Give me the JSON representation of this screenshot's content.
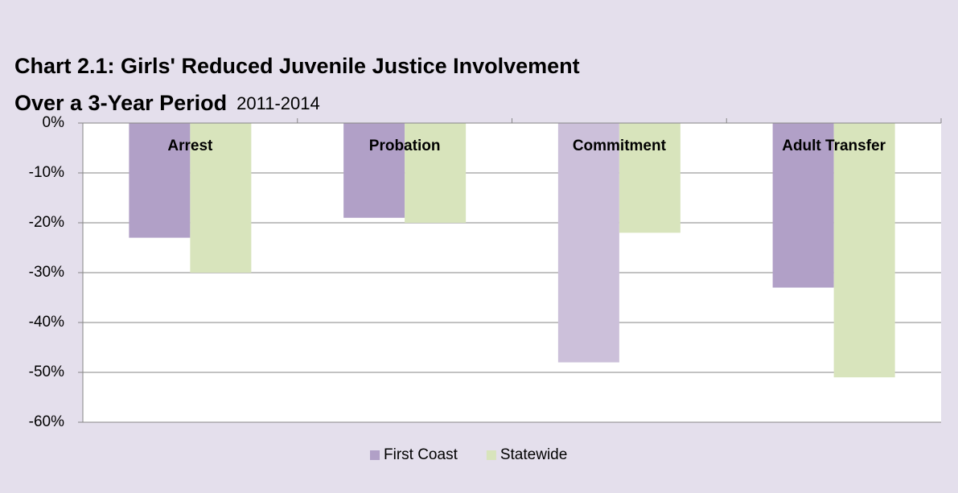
{
  "chart_data": {
    "type": "bar",
    "title_lines": [
      "Chart 2.1: Girls' Reduced Juvenile Justice Involvement",
      "Over a 3-Year Period"
    ],
    "subtitle": "2011-2014",
    "categories": [
      "Arrest",
      "Probation",
      "Commitment",
      "Adult Transfer"
    ],
    "series": [
      {
        "name": "First Coast",
        "color": "#b1a0c7",
        "colors": [
          "#b1a0c7",
          "#b1a0c7",
          "#ccc0da",
          "#b1a0c7"
        ],
        "values": [
          -23,
          -19,
          -48,
          -33
        ]
      },
      {
        "name": "Statewide",
        "color": "#d8e4bc",
        "values": [
          -30,
          -20,
          -22,
          -51
        ]
      }
    ],
    "ylim": [
      -60,
      0
    ],
    "yticks": [
      {
        "value": 0,
        "label": "0%"
      },
      {
        "value": -10,
        "label": "-10%"
      },
      {
        "value": -20,
        "label": "-20%"
      },
      {
        "value": -30,
        "label": "-30%"
      },
      {
        "value": -40,
        "label": "-40%"
      },
      {
        "value": -50,
        "label": "-50%"
      },
      {
        "value": -60,
        "label": "-60%"
      }
    ],
    "grid": true,
    "legend": "bottom"
  }
}
